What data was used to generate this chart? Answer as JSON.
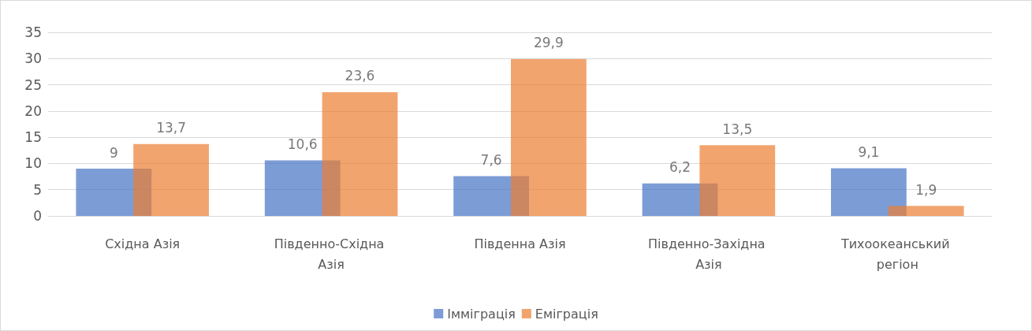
{
  "chart_data": {
    "type": "bar",
    "categories": [
      "Східна Азія",
      "Південно-Східна Азія",
      "Південна Азія",
      "Південно-Західна Азія",
      "Тихоокеанський регіон"
    ],
    "series": [
      {
        "name": "Імміграція",
        "color": "#4472c4",
        "values": [
          9,
          10.6,
          7.6,
          6.2,
          9.1
        ],
        "value_labels": [
          "9",
          "10,6",
          "7,6",
          "6,2",
          "9,1"
        ]
      },
      {
        "name": "Еміграція",
        "color": "#ed7d31",
        "values": [
          13.7,
          23.6,
          29.9,
          13.5,
          1.9
        ],
        "value_labels": [
          "13,7",
          "23,6",
          "29,9",
          "13,5",
          "1,9"
        ]
      }
    ],
    "ylim": [
      0,
      35
    ],
    "yticks": [
      0,
      5,
      10,
      15,
      20,
      25,
      30,
      35
    ],
    "grid": "y",
    "legend": "bottom"
  }
}
